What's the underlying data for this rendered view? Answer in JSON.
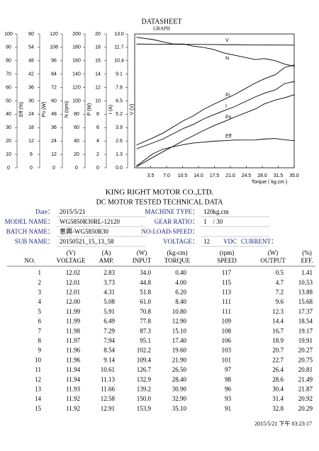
{
  "chart_data": {
    "type": "line",
    "title": "DATASHEET",
    "subtitle": "GRAPH",
    "x_label": "Torque ( kg.cm )",
    "color": "#000000",
    "grid": false,
    "xlim": [
      0,
      35
    ],
    "xticks": [
      3.5,
      {
        "value": 7,
        "label": "7.0"
      },
      10.5,
      {
        "value": 14,
        "label": "14.0"
      },
      17.5,
      {
        "value": 21,
        "label": "21.0"
      },
      24.5,
      {
        "value": 28,
        "label": "28.0"
      },
      31.5,
      {
        "value": 35,
        "label": "35.0"
      }
    ],
    "x": [
      0.4,
      4,
      6.2,
      8.4,
      10.8,
      12.9,
      15.1,
      17.4,
      19.6,
      21.9,
      26.5,
      28.4,
      30.9,
      32.9,
      35.1
    ],
    "series": [
      {
        "name": "Eff",
        "axis_label": "Eff (%)",
        "ylim": [
          0,
          100
        ],
        "yticks": [
          0,
          10,
          20,
          30,
          40,
          50,
          60,
          70,
          80,
          90,
          100
        ],
        "values": [
          1.41,
          10.53,
          13.88,
          15.68,
          17.37,
          18.54,
          19.17,
          19.91,
          20.27,
          20.75,
          20.81,
          21.49,
          21.87,
          20.92,
          20.29
        ]
      },
      {
        "name": "Po",
        "axis_label": "Po (W)",
        "ylim": [
          0,
          60
        ],
        "yticks": [
          0,
          6,
          12,
          18,
          24,
          30,
          36,
          42,
          48,
          54,
          60
        ],
        "values": [
          0.5,
          4.7,
          7.2,
          9.6,
          12.3,
          14.4,
          16.7,
          18.9,
          20.7,
          22.7,
          26.4,
          28.6,
          30.4,
          31.4,
          32.8
        ]
      },
      {
        "name": "N",
        "axis_label": "N (rpm)",
        "ylim": [
          0,
          120
        ],
        "yticks": [
          0,
          12,
          24,
          36,
          48,
          60,
          72,
          84,
          96,
          108,
          120
        ],
        "values": [
          117,
          115,
          113,
          111,
          111,
          109,
          108,
          106,
          103,
          101,
          97,
          98,
          96,
          93,
          91
        ]
      },
      {
        "name": "Pi",
        "axis_label": "P (W)",
        "ylim": [
          0,
          200
        ],
        "yticks": [
          0,
          20,
          40,
          60,
          80,
          100,
          120,
          140,
          160,
          180,
          200
        ],
        "values": [
          34.0,
          44.8,
          51.8,
          61.0,
          70.8,
          77.8,
          87.3,
          95.1,
          102.2,
          109.4,
          126.7,
          132.9,
          139.2,
          150.0,
          153.9
        ]
      },
      {
        "name": "I",
        "axis_label": "I (A)",
        "ylim": [
          0,
          20
        ],
        "yticks": [
          0,
          2,
          4,
          6,
          8,
          10,
          12,
          14,
          16,
          18,
          20
        ],
        "values": [
          2.83,
          3.73,
          4.31,
          5.08,
          5.91,
          6.49,
          7.29,
          7.94,
          8.54,
          9.14,
          10.61,
          11.13,
          11.66,
          12.58,
          12.91
        ]
      },
      {
        "name": "V",
        "axis_label": "V (V)",
        "ylim": [
          0,
          13
        ],
        "yticks": [
          {
            "value": 0,
            "label": "0.0"
          },
          1.3,
          2.6,
          3.9,
          5.2,
          6.5,
          7.8,
          9.1,
          10.4,
          11.7,
          {
            "value": 13,
            "label": "13.0"
          }
        ],
        "values": [
          12.02,
          12.01,
          12.01,
          12.0,
          11.99,
          11.99,
          11.98,
          11.97,
          11.96,
          11.96,
          11.94,
          11.94,
          11.93,
          11.92,
          11.92
        ]
      }
    ]
  },
  "header": {
    "company": "KING RIGHT MOTOR CO.,LTD.",
    "subtitle": "DC MOTOR TESTED TECHNICAL DATA"
  },
  "fields": {
    "date": {
      "label": "Date：",
      "value": "2015/5/21"
    },
    "model": {
      "label": "MODEL NAME：",
      "value": "WG5850R30RL-12120"
    },
    "batch": {
      "label": "BATCH NAME：",
      "value": "意興-WG5850R30"
    },
    "sub": {
      "label": "SUB NAME：",
      "value": "20150521_15_13_58"
    },
    "machine": {
      "label": "MACHINE TYPE：",
      "value": "120kg.cm"
    },
    "gear": {
      "label": "GEAR RATIO：",
      "value": "1　/ 30"
    },
    "noload": {
      "label": "NO-LOAD-SPEED："
    },
    "voltage": {
      "label": "VOLTAGE：",
      "value": "12",
      "unit": "VDC"
    },
    "current": {
      "label": "CURRENT："
    }
  },
  "table": {
    "units": [
      "(V)",
      "(A)",
      "(W)",
      "(kg-cm)",
      "(rpm)",
      "(W)",
      "(%)"
    ],
    "columns": [
      "NO.",
      "VOLTAGE",
      "AMP.",
      "INPUT",
      "TORQUE",
      "SPEED",
      "OUTPUT",
      "EFF."
    ],
    "rows": [
      [
        "1",
        "12.02",
        "2.83",
        "34.0",
        "0.40",
        "117",
        "0.5",
        "1.41"
      ],
      [
        "2",
        "12.01",
        "3.73",
        "44.8",
        "4.00",
        "115",
        "4.7",
        "10.53"
      ],
      [
        "3",
        "12.01",
        "4.31",
        "51.8",
        "6.20",
        "113",
        "7.2",
        "13.88"
      ],
      [
        "4",
        "12.00",
        "5.08",
        "61.0",
        "8.40",
        "111",
        "9.6",
        "15.68"
      ],
      [
        "5",
        "11.99",
        "5.91",
        "70.8",
        "10.80",
        "111",
        "12.3",
        "17.37"
      ],
      [
        "6",
        "11.99",
        "6.49",
        "77.8",
        "12.90",
        "109",
        "14.4",
        "18.54"
      ],
      [
        "7",
        "11.98",
        "7.29",
        "87.3",
        "15.10",
        "108",
        "16.7",
        "19.17"
      ],
      [
        "8",
        "11.97",
        "7.94",
        "95.1",
        "17.40",
        "106",
        "18.9",
        "19.91"
      ],
      [
        "9",
        "11.96",
        "8.54",
        "102.2",
        "19.60",
        "103",
        "20.7",
        "20.27"
      ],
      [
        "10",
        "11.96",
        "9.14",
        "109.4",
        "21.90",
        "101",
        "22.7",
        "20.75"
      ],
      [
        "11",
        "11.94",
        "10.61",
        "126.7",
        "26.50",
        "97",
        "26.4",
        "20.81"
      ],
      [
        "12",
        "11.94",
        "11.13",
        "132.9",
        "28.40",
        "98",
        "28.6",
        "21.49"
      ],
      [
        "13",
        "11.93",
        "11.66",
        "139.2",
        "30.90",
        "96",
        "30.4",
        "21.87"
      ],
      [
        "14",
        "11.92",
        "12.58",
        "150.0",
        "32.90",
        "93",
        "31.4",
        "20.92"
      ],
      [
        "15",
        "11.92",
        "12.91",
        "153.9",
        "35.10",
        "91",
        "32.8",
        "20.29"
      ]
    ]
  },
  "footer": {
    "timestamp": "2015/5/21 下午 03:23:17"
  }
}
